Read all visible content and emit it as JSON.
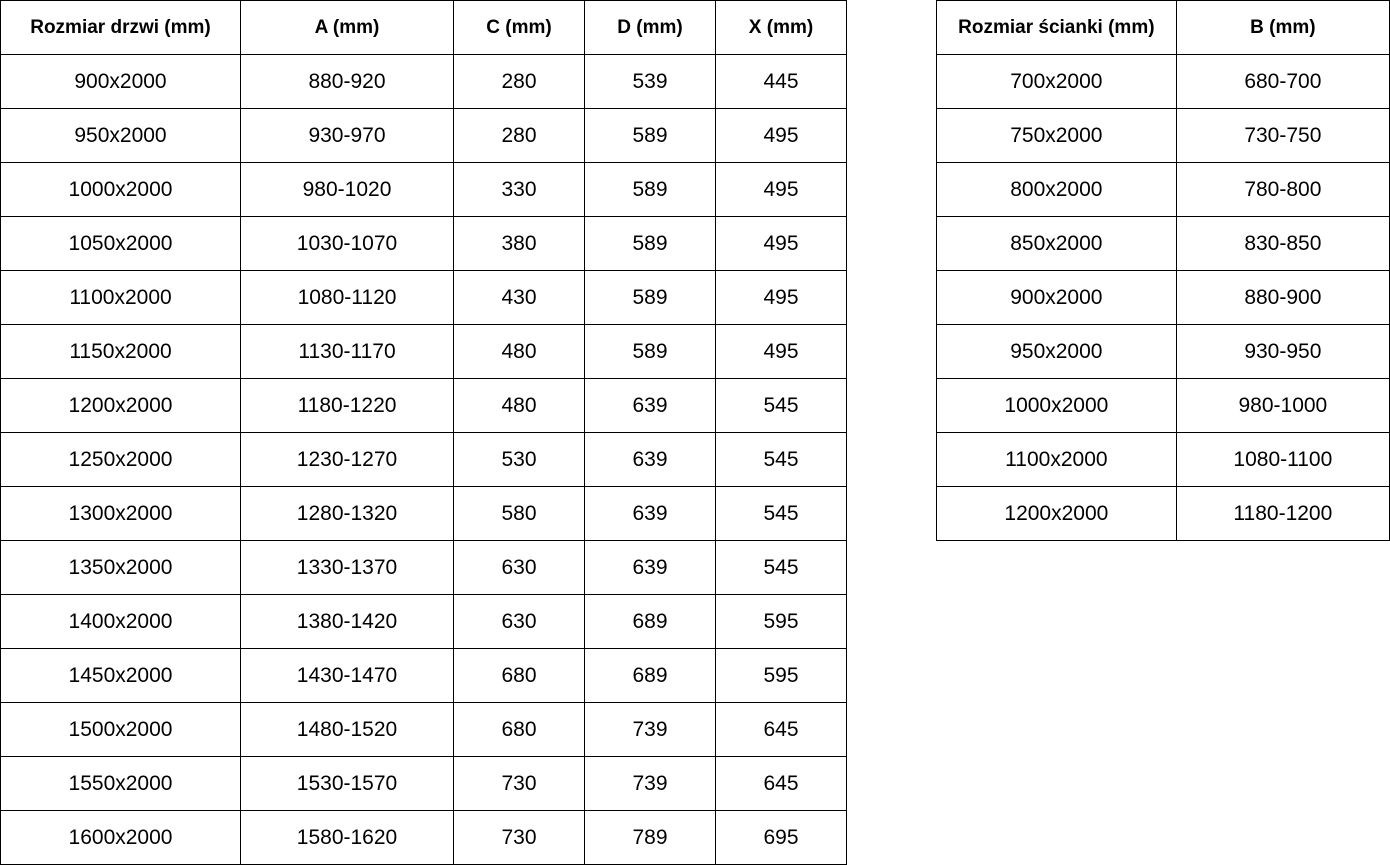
{
  "door_table": {
    "headers": [
      "Rozmiar drzwi (mm)",
      "A (mm)",
      "C (mm)",
      "D (mm)",
      "X (mm)"
    ],
    "rows": [
      [
        "900x2000",
        "880-920",
        "280",
        "539",
        "445"
      ],
      [
        "950x2000",
        "930-970",
        "280",
        "589",
        "495"
      ],
      [
        "1000x2000",
        "980-1020",
        "330",
        "589",
        "495"
      ],
      [
        "1050x2000",
        "1030-1070",
        "380",
        "589",
        "495"
      ],
      [
        "1100x2000",
        "1080-1120",
        "430",
        "589",
        "495"
      ],
      [
        "1150x2000",
        "1130-1170",
        "480",
        "589",
        "495"
      ],
      [
        "1200x2000",
        "1180-1220",
        "480",
        "639",
        "545"
      ],
      [
        "1250x2000",
        "1230-1270",
        "530",
        "639",
        "545"
      ],
      [
        "1300x2000",
        "1280-1320",
        "580",
        "639",
        "545"
      ],
      [
        "1350x2000",
        "1330-1370",
        "630",
        "639",
        "545"
      ],
      [
        "1400x2000",
        "1380-1420",
        "630",
        "689",
        "595"
      ],
      [
        "1450x2000",
        "1430-1470",
        "680",
        "689",
        "595"
      ],
      [
        "1500x2000",
        "1480-1520",
        "680",
        "739",
        "645"
      ],
      [
        "1550x2000",
        "1530-1570",
        "730",
        "739",
        "645"
      ],
      [
        "1600x2000",
        "1580-1620",
        "730",
        "789",
        "695"
      ]
    ]
  },
  "panel_table": {
    "headers": [
      "Rozmiar ścianki (mm)",
      "B (mm)"
    ],
    "rows": [
      [
        "700x2000",
        "680-700"
      ],
      [
        "750x2000",
        "730-750"
      ],
      [
        "800x2000",
        "780-800"
      ],
      [
        "850x2000",
        "830-850"
      ],
      [
        "900x2000",
        "880-900"
      ],
      [
        "950x2000",
        "930-950"
      ],
      [
        "1000x2000",
        "980-1000"
      ],
      [
        "1100x2000",
        "1080-1100"
      ],
      [
        "1200x2000",
        "1180-1200"
      ]
    ]
  }
}
